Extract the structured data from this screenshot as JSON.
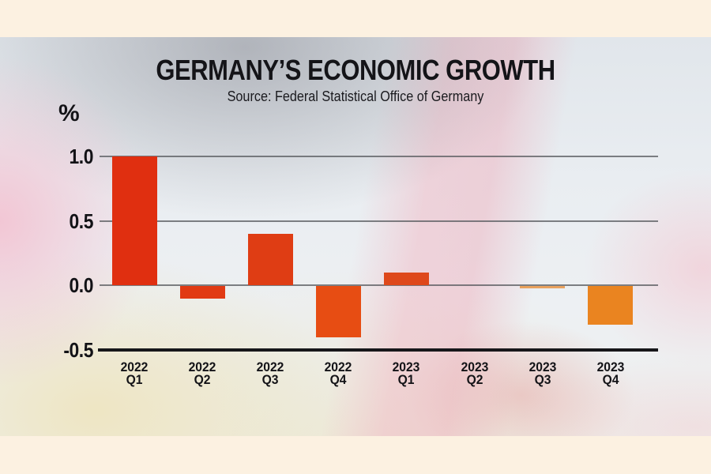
{
  "chart_data": {
    "type": "bar",
    "title": "GERMANY’S ECONOMIC GROWTH",
    "subtitle": "Source: Federal Statistical Office of Germany",
    "unit_label": "%",
    "categories": [
      {
        "year": "2022",
        "quarter": "Q1"
      },
      {
        "year": "2022",
        "quarter": "Q2"
      },
      {
        "year": "2022",
        "quarter": "Q3"
      },
      {
        "year": "2022",
        "quarter": "Q4"
      },
      {
        "year": "2023",
        "quarter": "Q1"
      },
      {
        "year": "2023",
        "quarter": "Q2"
      },
      {
        "year": "2023",
        "quarter": "Q3"
      },
      {
        "year": "2023",
        "quarter": "Q4"
      }
    ],
    "values": [
      1.0,
      -0.1,
      0.4,
      -0.4,
      0.1,
      0.0,
      0.0,
      -0.3
    ],
    "bar_colors": [
      "#e02f10",
      "#e13a13",
      "#df3d14",
      "#e74d13",
      "#de481b",
      "#e13a13",
      "#e8821e",
      "#ea8420"
    ],
    "zero_hairline_indices": [
      6
    ],
    "yticks": [
      1.0,
      0.5,
      0.0,
      -0.5
    ],
    "ytick_labels": [
      "1.0",
      "0.5",
      "0.0",
      "-0.5"
    ],
    "ylim": [
      -0.5,
      1.15
    ],
    "baseline": -0.5,
    "grid": true,
    "legend": null,
    "colors": {
      "axis": "#17171a",
      "gridline": "#56585c",
      "text": "#121215",
      "frame_band": "#fcf1e1",
      "latest_bar": "#ea8420"
    }
  }
}
